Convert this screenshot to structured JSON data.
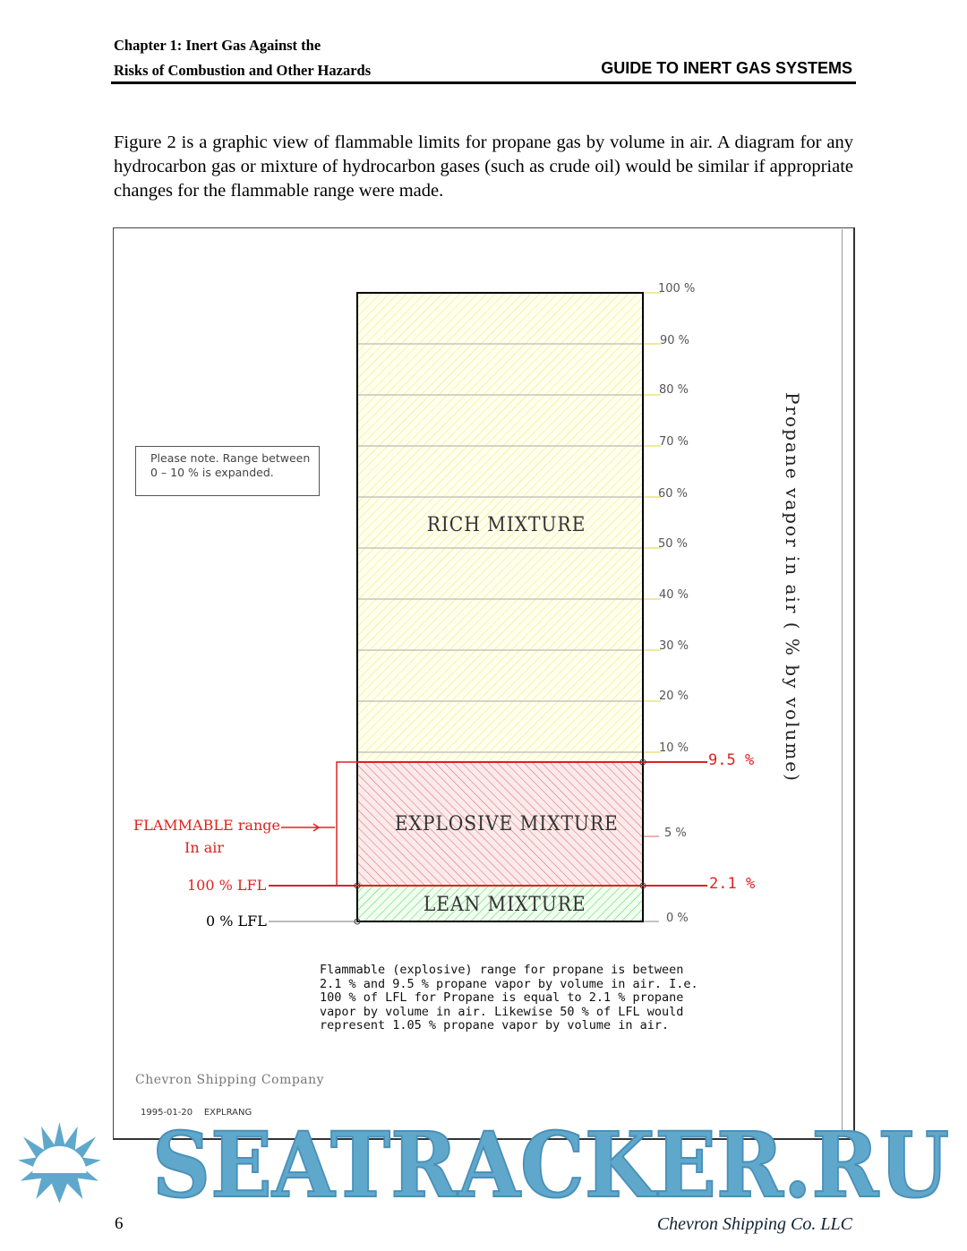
{
  "header": {
    "chapter_line1": "Chapter 1:  Inert Gas Against the",
    "chapter_line2": "Risks of Combustion and Other Hazards",
    "guide_title": "GUIDE TO INERT GAS SYSTEMS"
  },
  "intro": "Figure 2 is a graphic view of flammable limits for propane gas by volume in air. A diagram for any hydrocarbon gas or mixture of hydrocarbon gases (such as crude oil) would be similar if appropriate changes for the flammable range were made.",
  "figure": {
    "note": "Please note. Range between 0 – 10 % is expanded.",
    "ticks": [
      "100 %",
      "90 %",
      "80 %",
      "70 %",
      "60 %",
      "50 %",
      "40 %",
      "30 %",
      "20 %",
      "10 %",
      "5 %",
      "0 %"
    ],
    "upper_limit": "9.5 %",
    "lower_limit": "2.1 %",
    "zones": {
      "rich": "RICH  MIXTURE",
      "explosive": "EXPLOSIVE  MIXTURE",
      "lean": "LEAN  MIXTURE"
    },
    "flammable_label_1": "FLAMMABLE range",
    "flammable_label_2": "In air",
    "lfl_100": "100 % LFL",
    "lfl_0": "0 % LFL",
    "axis_label": "Propane vapor in air ( % by volume)",
    "caption": "Flammable (explosive) range for propane is between\n2.1 % and 9.5 % propane vapor by volume in air. I.e.\n100 % of LFL for Propane is equal to 2.1 % propane\nvapor by volume in air. Likewise 50 % of LFL would\nrepresent 1.05 % propane vapor by volume in air.",
    "company": "Chevron Shipping Company",
    "date_code": "1995-01-20    EXPLRANG",
    "colors": {
      "rich": "#ffff99",
      "explosive": "#e02020",
      "lean": "#33cc33"
    }
  },
  "footer": {
    "page_number": "6",
    "company": "Chevron Shipping Co. LLC"
  },
  "watermark": {
    "text": "SEATRACKER.RU",
    "color": "#5fa8cc"
  }
}
